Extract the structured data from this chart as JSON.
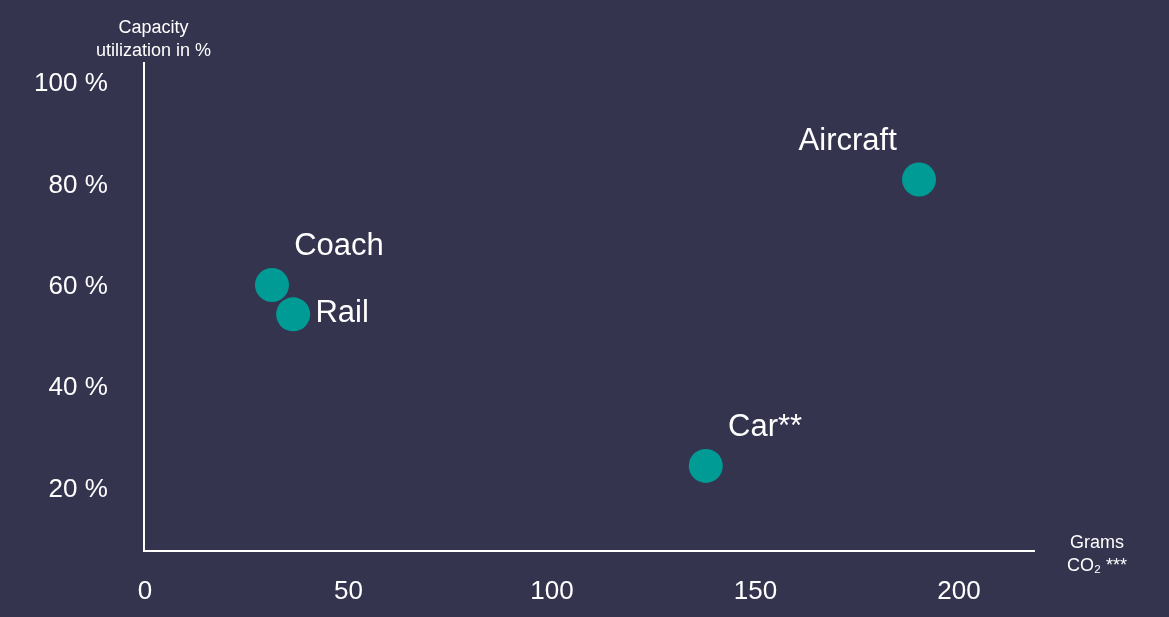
{
  "chart_data": {
    "type": "scatter",
    "xlabel": "Grams\nCO₂ ***",
    "ylabel": "Capacity\nutilization in %",
    "series": [
      {
        "name": "Coach",
        "color": "#009b95",
        "x": [
          31.2
        ],
        "values": [
          60
        ]
      },
      {
        "name": "Rail",
        "color": "#009b95",
        "x": [
          36.4
        ],
        "values": [
          54.2
        ]
      },
      {
        "name": "Aircraft",
        "color": "#009b95",
        "x": [
          190.2
        ],
        "values": [
          80.8
        ]
      },
      {
        "name": "Car**",
        "color": "#009b95",
        "x": [
          137.8
        ],
        "values": [
          24.3
        ]
      }
    ],
    "xlim": [
      0,
      218.7
    ],
    "ylim": [
      7.7,
      104
    ],
    "xticks": [
      0,
      50,
      100,
      150,
      200
    ],
    "yticks": [
      {
        "value": 20,
        "label": "20 %"
      },
      {
        "value": 40,
        "label": "40 %"
      },
      {
        "value": 60,
        "label": "60 %"
      },
      {
        "value": 80,
        "label": "80 %"
      },
      {
        "value": 100,
        "label": "100 %"
      }
    ],
    "marker": "circle",
    "grid": false,
    "legend": false
  }
}
